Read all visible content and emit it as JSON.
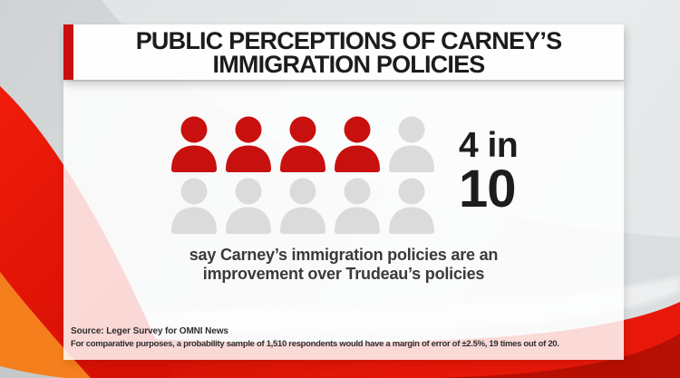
{
  "title": {
    "line1": "PUBLIC PERCEPTIONS OF CARNEY’S",
    "line2": "IMMIGRATION POLICIES"
  },
  "stat": {
    "line1": "4 in",
    "line2": "10"
  },
  "caption": {
    "line1": "say Carney’s immigration policies are an",
    "line2": "improvement over Trudeau’s policies"
  },
  "source": {
    "line1": "Source: Leger Survey for OMNI News",
    "line2": "For comparative purposes, a probability sample of 1,510 respondents would have a margin of error of ±2.5%, 19 times out of 20."
  },
  "pictograph": {
    "total": 10,
    "highlighted": 4,
    "per_row": 5
  },
  "colors": {
    "accent_red": "#c8100f",
    "person_highlight": "#c8100f",
    "person_muted": "#dbdbdb",
    "swoosh_red": "#e8170b",
    "swoosh_orange": "#f57e1d",
    "bottom_red": "#d91104",
    "title_text": "#1c1c1c"
  },
  "chart_data": {
    "type": "pictograph",
    "title": "PUBLIC PERCEPTIONS OF CARNEY’S IMMIGRATION POLICIES",
    "stat_label": "4 in 10",
    "value": 4,
    "total": 10,
    "rows": 2,
    "icons_per_row": 5,
    "highlighted_icons": 4,
    "highlighted_color": "#c8100f",
    "muted_color": "#dbdbdb",
    "caption": "say Carney’s immigration policies are an improvement over Trudeau’s policies",
    "source": "Leger Survey for OMNI News",
    "footnote": "For comparative purposes, a probability sample of 1,510 respondents would have a margin of error of ±2.5%, 19 times out of 20."
  }
}
